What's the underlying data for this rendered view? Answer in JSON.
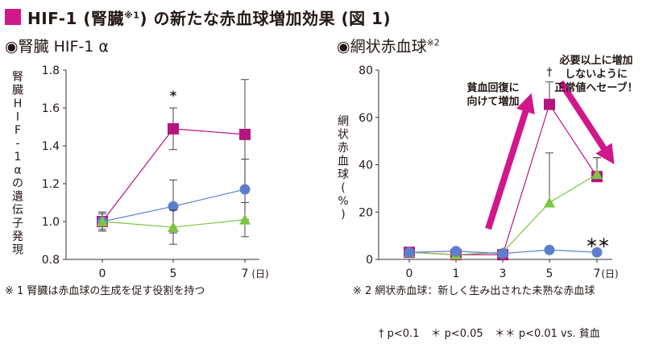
{
  "title": {
    "prefix": "HIF-1 (腎臓",
    "sup": "※1",
    "suffix": ") の新たな赤血球増加効果 (図 1)"
  },
  "colors": {
    "accent": "#d1178a",
    "magenta": "#b5157f",
    "blue": "#5b7fcc",
    "green": "#7dc442",
    "axis": "#333333"
  },
  "chart_data": [
    {
      "type": "line",
      "title": "◉腎臓 HIF-1 α",
      "ylabel": "腎臓HIF-1αの遺伝子発現",
      "xlabel": "",
      "x": [
        0,
        5,
        7
      ],
      "x_unit": "(日)",
      "ylim": [
        0.8,
        1.8
      ],
      "yticks": [
        "0.8",
        "1.0",
        "1.2",
        "1.4",
        "1.6",
        "1.8"
      ],
      "grid": false,
      "series": [
        {
          "color": "#b5157f",
          "marker": "square",
          "values": [
            1.0,
            1.49,
            1.46
          ],
          "err": [
            0.05,
            0.11,
            0.29
          ]
        },
        {
          "color": "#5b7fcc",
          "marker": "circle",
          "values": [
            1.0,
            1.08,
            1.17
          ],
          "err": [
            0.05,
            0.14,
            0.16
          ]
        },
        {
          "color": "#7dc442",
          "marker": "triangle",
          "values": [
            1.0,
            0.97,
            1.01
          ],
          "err": [
            0.04,
            0.09,
            0.09
          ]
        }
      ],
      "annotations": [
        {
          "x": 5,
          "text": "*"
        }
      ]
    },
    {
      "type": "line",
      "title": "◉網状赤血球",
      "title_sup": "※2",
      "ylabel": "網状赤血球(%)",
      "xlabel": "",
      "x": [
        0,
        1,
        3,
        5,
        7
      ],
      "x_unit": "(日)",
      "ylim": [
        0,
        80
      ],
      "yticks": [
        "0",
        "20",
        "40",
        "60",
        "80"
      ],
      "grid": false,
      "series": [
        {
          "color": "#b5157f",
          "marker": "square",
          "values": [
            3,
            2,
            2,
            65.5,
            35
          ],
          "err": [
            0,
            0,
            0,
            9.5,
            8
          ]
        },
        {
          "color": "#7dc442",
          "marker": "triangle",
          "values": [
            3,
            2,
            3,
            24,
            36
          ],
          "err": [
            0,
            0,
            0,
            21,
            7
          ]
        },
        {
          "color": "#5b7fcc",
          "marker": "circle",
          "values": [
            3,
            3.5,
            2.5,
            4,
            3
          ],
          "err": [
            0,
            0,
            0,
            0,
            0
          ]
        }
      ],
      "annotations": [
        {
          "x": 5,
          "text": "†"
        },
        {
          "x": 7,
          "text": "＊＊"
        },
        {
          "text": "貧血回復に向けて増加",
          "lines": [
            "貧血回復に",
            "向けて増加"
          ]
        },
        {
          "text": "必要以上に増加しないように正常値へセーブ！",
          "lines": [
            "必要以上に増加",
            "しないように",
            "正常値へセーブ！"
          ]
        }
      ]
    }
  ],
  "notes": {
    "note1": "※ 1 腎臓は赤血球の生成を促す役割を持つ",
    "note2": "※ 2 網状赤血球：新しく生み出された未熟な赤血球",
    "p1": "† p<0.1",
    "p2": "＊ p<0.05",
    "p3": "＊＊ p<0.01 vs. 貧血"
  }
}
